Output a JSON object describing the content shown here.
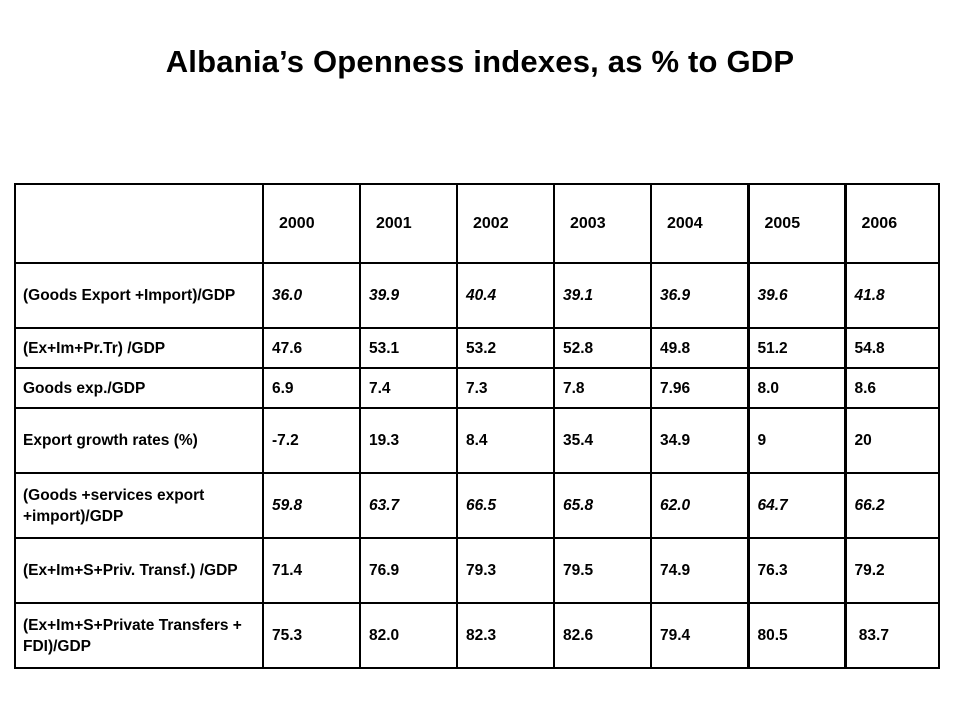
{
  "title": "Albania’s Openness indexes, as % to GDP",
  "table": {
    "corner": "",
    "years": [
      "2000",
      "2001",
      "2002",
      "2003",
      "2004",
      "2005",
      "2006"
    ],
    "rows": [
      {
        "label": "(Goods Export +Import)/GDP",
        "values": [
          "36.0",
          "39.9",
          "40.4",
          "39.1",
          "36.9",
          "39.6",
          "41.8"
        ],
        "italic": true
      },
      {
        "label": "(Ex+Im+Pr.Tr) /GDP",
        "values": [
          "47.6",
          "53.1",
          "53.2",
          "52.8",
          "49.8",
          "51.2",
          "54.8"
        ],
        "italic": false
      },
      {
        "label": "Goods exp./GDP",
        "values": [
          "6.9",
          "7.4",
          "7.3",
          "7.8",
          "7.96",
          "8.0",
          "8.6"
        ],
        "italic": false
      },
      {
        "label": "Export growth rates (%)",
        "values": [
          "-7.2",
          "19.3",
          "8.4",
          "35.4",
          "34.9",
          "9",
          "20"
        ],
        "italic": false
      },
      {
        "label": "(Goods +services export +import)/GDP",
        "values": [
          "59.8",
          "63.7",
          "66.5",
          "65.8",
          "62.0",
          "64.7",
          "66.2"
        ],
        "italic": true
      },
      {
        "label": "(Ex+Im+S+Priv. Transf.) /GDP",
        "values": [
          "71.4",
          "76.9",
          "79.3",
          "79.5",
          "74.9",
          "76.3",
          "79.2"
        ],
        "italic": false
      },
      {
        "label": "(Ex+Im+S+Private Transfers + FDI)/GDP",
        "values": [
          "75.3",
          "82.0",
          "82.3",
          "82.6",
          "79.4",
          "80.5",
          " 83.7"
        ],
        "italic": false
      }
    ]
  }
}
